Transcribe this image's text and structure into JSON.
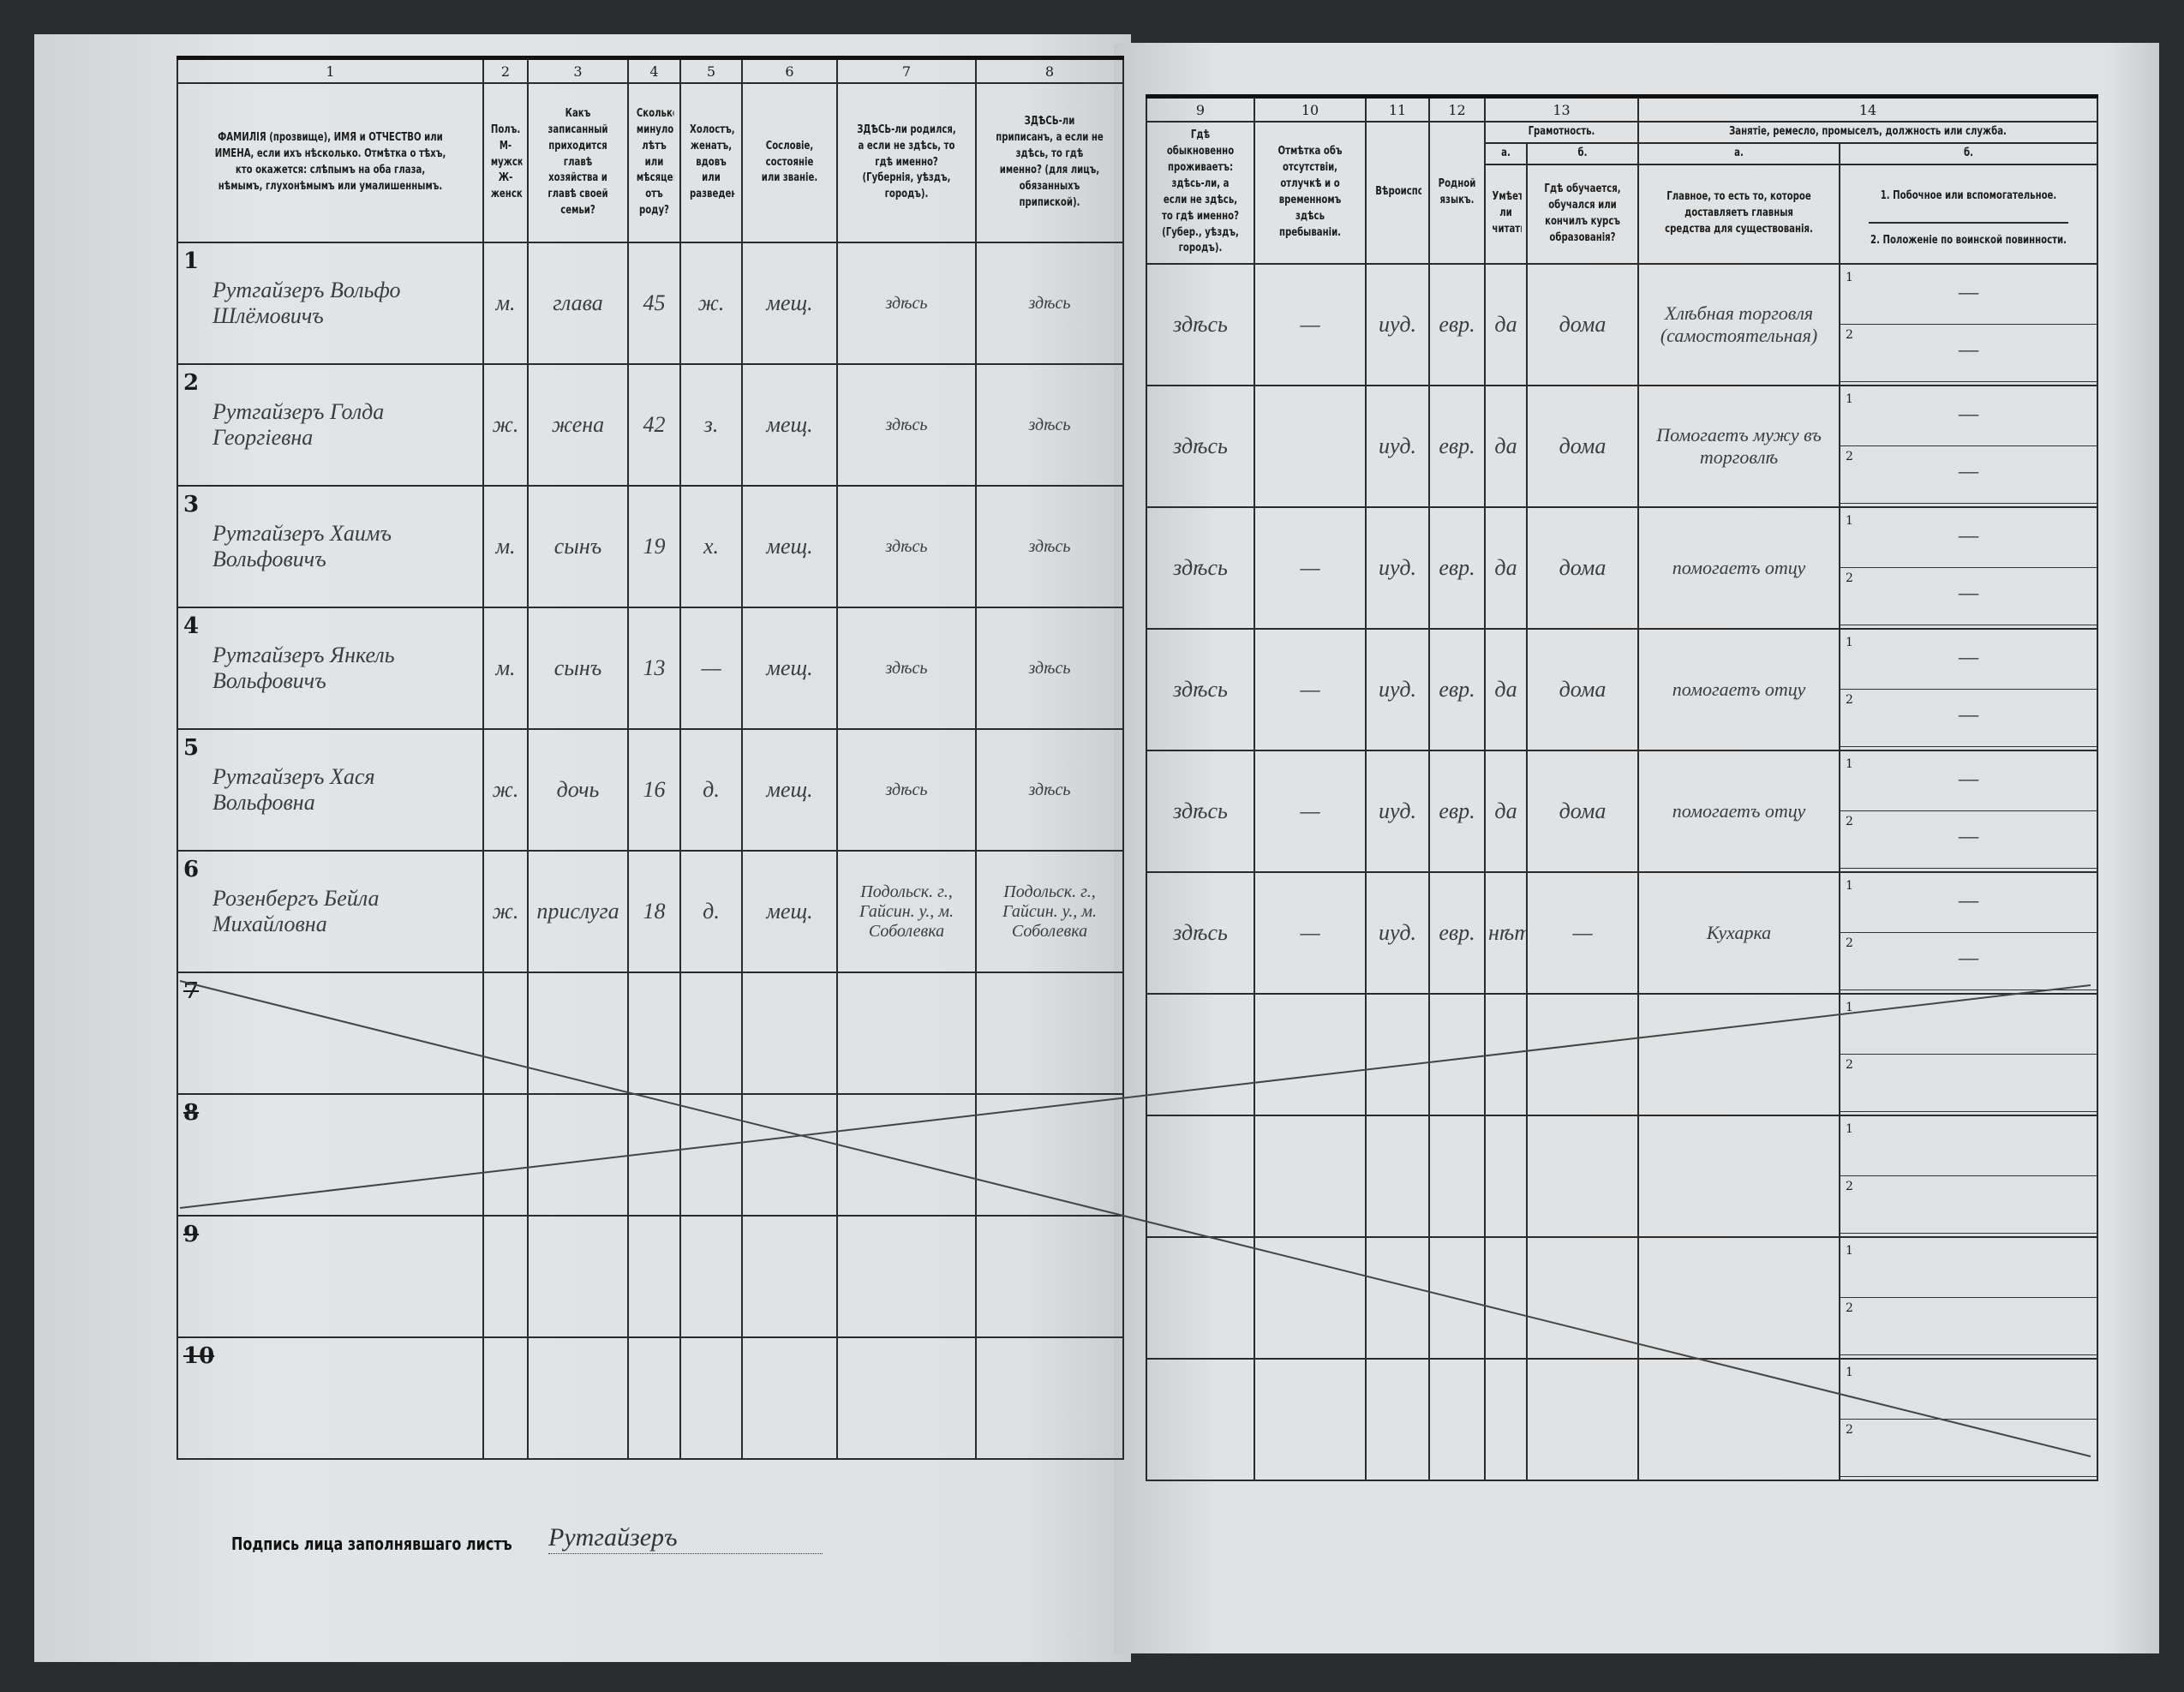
{
  "left_headers": [
    {
      "num": "1",
      "text": "ФАМИЛІЯ (прозвище), ИМЯ и ОТЧЕСТВО или ИМЕНА, если ихъ нѣсколько. Отмѣтка о тѣхъ, кто окажется: слѣпымъ на оба глаза, нѣмымъ, глухонѣмымъ или умалишеннымъ."
    },
    {
      "num": "2",
      "text": "Полъ. М-мужской. Ж-женскій."
    },
    {
      "num": "3",
      "text": "Какъ записанный приходится главѣ хозяйства и главѣ своей семьи?"
    },
    {
      "num": "4",
      "text": "Сколько минуло лѣтъ или мѣсяцевъ отъ роду?"
    },
    {
      "num": "5",
      "text": "Холостъ, женатъ, вдовъ или разведенъ."
    },
    {
      "num": "6",
      "text": "Сословіе, состояніе или званіе."
    },
    {
      "num": "7",
      "text": "ЗДѢСЬ-ли родился, а если не здѣсь, то гдѣ именно? (Губернія, уѣздъ, городъ)."
    },
    {
      "num": "8",
      "text": "ЗДѢСЬ-ли приписанъ, а если не здѣсь, то гдѣ именно? (для лицъ, обязанныхъ припиской)."
    }
  ],
  "right_headers": {
    "col9": {
      "num": "9",
      "text": "Гдѣ обыкновенно проживаетъ: здѣсь-ли, а если не здѣсь, то гдѣ именно? (Губер., уѣздъ, городъ)."
    },
    "col10": {
      "num": "10",
      "text": "Отмѣтка объ отсутствіи, отлучкѣ и о временномъ здѣсь пребываніи."
    },
    "col11": {
      "num": "11",
      "text": "Вѣроисповѣданіе."
    },
    "col12": {
      "num": "12",
      "text": "Родной языкъ."
    },
    "col13": {
      "num": "13",
      "title": "Грамотность.",
      "a": "а.",
      "b": "б.",
      "a_text": "Умѣетъ-ли читать?",
      "b_text": "Гдѣ обучается, обучался или кончилъ курсъ образованія?"
    },
    "col14": {
      "num": "14",
      "title": "Занятіе, ремесло, промыселъ, должность или служба.",
      "a": "а.",
      "b": "б.",
      "a_text": "Главное, то есть то, которое доставляетъ главныя средства для существованія.",
      "b1": "1. Побочное или вспомогательное.",
      "b2": "2. Положеніе по воинской повинности."
    }
  },
  "rows": [
    {
      "num": "1",
      "name": "Рутгайзеръ Вольфо Шлёмовичъ",
      "sex": "м.",
      "relation": "глава",
      "age": "45",
      "marital": "ж.",
      "estate": "мещ.",
      "born": "здѣсь",
      "registered": "здѣсь",
      "resides": "здѣсь",
      "absent": "—",
      "religion": "иуд.",
      "language": "евр.",
      "literate": "да",
      "education": "дома",
      "occupation": "Хлѣбная торговля (самостоятельная)",
      "side": "—",
      "military": "—"
    },
    {
      "num": "2",
      "name": "Рутгайзеръ Голда Георгіевна",
      "sex": "ж.",
      "relation": "жена",
      "age": "42",
      "marital": "з.",
      "estate": "мещ.",
      "born": "здѣсь",
      "registered": "здѣсь",
      "resides": "здѣсь",
      "absent": "",
      "religion": "иуд.",
      "language": "евр.",
      "literate": "да",
      "education": "дома",
      "occupation": "Помогаетъ мужу въ торговлѣ",
      "side": "—",
      "military": "—"
    },
    {
      "num": "3",
      "name": "Рутгайзеръ Хаимъ Вольфовичъ",
      "sex": "м.",
      "relation": "сынъ",
      "age": "19",
      "marital": "х.",
      "estate": "мещ.",
      "born": "здѣсь",
      "registered": "здѣсь",
      "resides": "здѣсь",
      "absent": "—",
      "religion": "иуд.",
      "language": "евр.",
      "literate": "да",
      "education": "дома",
      "occupation": "помогаетъ отцу",
      "side": "—",
      "military": "—"
    },
    {
      "num": "4",
      "name": "Рутгайзеръ Янкель Вольфовичъ",
      "sex": "м.",
      "relation": "сынъ",
      "age": "13",
      "marital": "—",
      "estate": "мещ.",
      "born": "здѣсь",
      "registered": "здѣсь",
      "resides": "здѣсь",
      "absent": "—",
      "religion": "иуд.",
      "language": "евр.",
      "literate": "да",
      "education": "дома",
      "occupation": "помогаетъ отцу",
      "side": "—",
      "military": "—"
    },
    {
      "num": "5",
      "name": "Рутгайзеръ Хася Вольфовна",
      "sex": "ж.",
      "relation": "дочь",
      "age": "16",
      "marital": "д.",
      "estate": "мещ.",
      "born": "здѣсь",
      "registered": "здѣсь",
      "resides": "здѣсь",
      "absent": "—",
      "religion": "иуд.",
      "language": "евр.",
      "literate": "да",
      "education": "дома",
      "occupation": "помогаетъ отцу",
      "side": "—",
      "military": "—"
    },
    {
      "num": "6",
      "name": "Розенбергъ Бейла Михайловна",
      "sex": "ж.",
      "relation": "прислуга",
      "age": "18",
      "marital": "д.",
      "estate": "мещ.",
      "born": "Подольск. г., Гайсин. у., м. Соболевка",
      "registered": "Подольск. г., Гайсин. у., м. Соболевка",
      "resides": "здѣсь",
      "absent": "—",
      "religion": "иуд.",
      "language": "евр.",
      "literate": "нѣтъ",
      "education": "—",
      "occupation": "Кухарка",
      "side": "—",
      "military": "—"
    },
    {
      "num": "7"
    },
    {
      "num": "8"
    },
    {
      "num": "9"
    },
    {
      "num": "10"
    }
  ],
  "sub_labels": {
    "one": "1",
    "two": "2"
  },
  "footer": {
    "signature_label": "Подпись лица заполнявшаго листъ",
    "signature_value": "Рутгайзеръ"
  },
  "colors": {
    "paper": "#dde1e3",
    "ink": "#1c1c1c",
    "handwriting": "#3a3d40",
    "scan_background": "#2a2d30"
  }
}
